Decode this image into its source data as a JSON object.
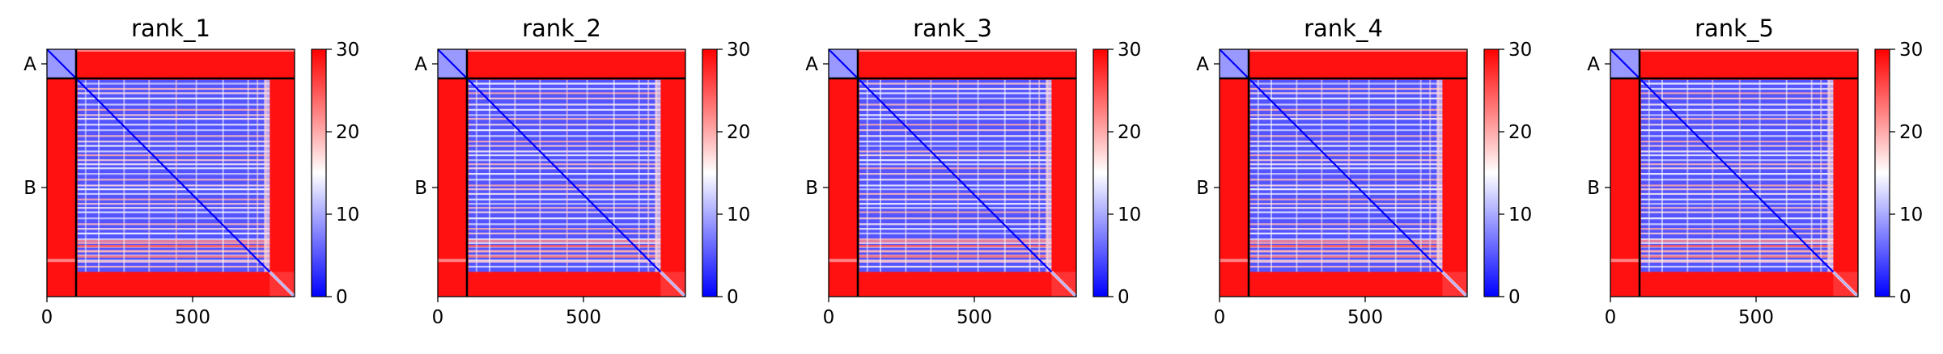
{
  "chart_data": {
    "type": "heatmap",
    "color_scale": {
      "min": 0,
      "max": 30,
      "low_color": "#0000ff",
      "mid_color": "#ffffff",
      "high_color": "#ff0000"
    },
    "colorbar_ticks": [
      "0",
      "10",
      "20",
      "30"
    ],
    "x_ticks": [
      {
        "label": "0",
        "value": 0
      },
      {
        "label": "500",
        "value": 500
      }
    ],
    "x_range": [
      0,
      850
    ],
    "chains": [
      {
        "label": "A",
        "start": 0,
        "end": 100
      },
      {
        "label": "B",
        "start": 100,
        "end": 850
      }
    ],
    "panels": [
      {
        "title": "rank_1"
      },
      {
        "title": "rank_2"
      },
      {
        "title": "rank_3"
      },
      {
        "title": "rank_4"
      },
      {
        "title": "rank_5"
      }
    ]
  }
}
